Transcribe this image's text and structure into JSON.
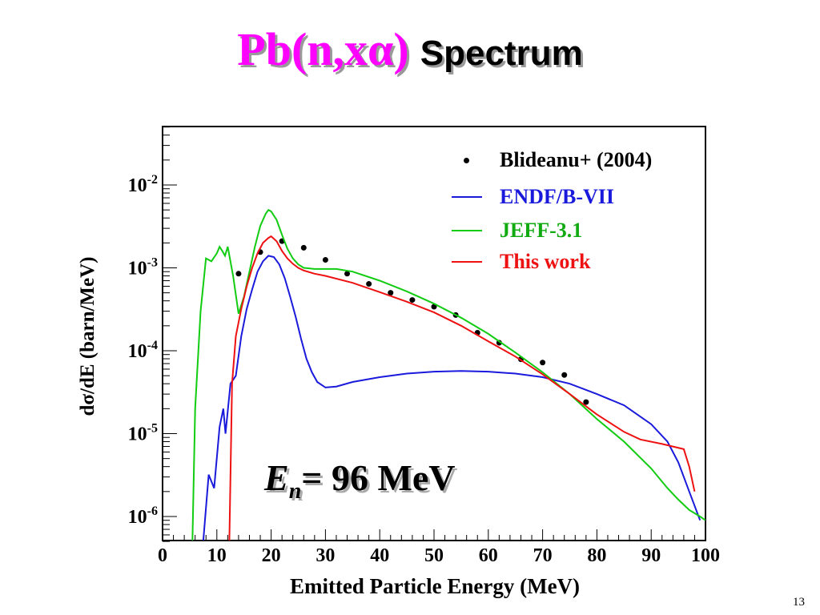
{
  "slide": {
    "title_main": "Pb(n,xα)",
    "title_sub": "Spectrum",
    "page_number": "13"
  },
  "chart_data": {
    "type": "line",
    "xlabel": "Emitted Particle Energy (MeV)",
    "ylabel": "dσ/dE (barn/MeV)",
    "xlim": [
      0,
      100
    ],
    "ylim": [
      5e-07,
      0.05
    ],
    "yscale": "log",
    "x_ticks": [
      0,
      10,
      20,
      30,
      40,
      50,
      60,
      70,
      80,
      90,
      100
    ],
    "x_tick_labels": [
      "0",
      "10",
      "20",
      "30",
      "40",
      "50",
      "60",
      "70",
      "80",
      "90",
      "100"
    ],
    "y_ticks": [
      1e-06,
      1e-05,
      0.0001,
      0.001,
      0.01
    ],
    "y_tick_labels": [
      {
        "base": "10",
        "exp": "-6"
      },
      {
        "base": "10",
        "exp": "-5"
      },
      {
        "base": "10",
        "exp": "-4"
      },
      {
        "base": "10",
        "exp": "-3"
      },
      {
        "base": "10",
        "exp": "-2"
      }
    ],
    "legend_position": "top-right",
    "annotation": {
      "symbol": "E",
      "subscript": "n",
      "text": "= 96 MeV"
    },
    "series": [
      {
        "name": "Blideanu+ (2004)",
        "style": "points",
        "color": "#000000",
        "x": [
          14,
          18,
          22,
          26,
          30,
          34,
          38,
          42,
          46,
          50,
          54,
          58,
          62,
          66,
          70,
          74,
          78
        ],
        "y": [
          0.00085,
          0.00155,
          0.0021,
          0.00175,
          0.00125,
          0.00085,
          0.00064,
          0.0005,
          0.00041,
          0.00034,
          0.00027,
          0.000165,
          0.000125,
          7.9e-05,
          7.2e-05,
          5.1e-05,
          2.4e-05
        ]
      },
      {
        "name": "ENDF/B-VII",
        "style": "line",
        "color": "#1a1adc",
        "x": [
          7.5,
          8.5,
          9.5,
          10.5,
          11.2,
          11.6,
          12.5,
          13.5,
          14.5,
          15.5,
          16.5,
          17.5,
          18.5,
          19.5,
          20.5,
          21.5,
          22.5,
          23.5,
          24.5,
          25.5,
          26.5,
          27.5,
          28.5,
          30,
          32,
          35,
          40,
          45,
          50,
          55,
          60,
          65,
          70,
          75,
          80,
          85,
          90,
          93,
          95,
          97,
          99
        ],
        "y": [
          5e-07,
          3.2e-06,
          2.2e-06,
          1.2e-05,
          2e-05,
          1e-05,
          4e-05,
          5e-05,
          0.00015,
          0.00032,
          0.00055,
          0.0009,
          0.0012,
          0.0014,
          0.00135,
          0.0011,
          0.00075,
          0.00045,
          0.00026,
          0.00014,
          8e-05,
          5.5e-05,
          4.2e-05,
          3.6e-05,
          3.7e-05,
          4.2e-05,
          4.8e-05,
          5.3e-05,
          5.6e-05,
          5.7e-05,
          5.6e-05,
          5.3e-05,
          4.8e-05,
          4e-05,
          3e-05,
          2.2e-05,
          1.3e-05,
          8e-06,
          4.5e-06,
          2e-06,
          9e-07
        ]
      },
      {
        "name": "JEFF-3.1",
        "style": "line",
        "color": "#11cc11",
        "x": [
          5.5,
          6,
          7,
          8,
          9,
          10,
          10.5,
          11,
          11.5,
          12,
          13,
          14,
          15,
          16,
          17,
          18,
          19,
          19.5,
          20,
          21,
          22,
          23,
          24,
          25,
          26,
          28,
          30,
          32,
          35,
          40,
          45,
          50,
          55,
          60,
          65,
          70,
          75,
          80,
          85,
          90,
          93,
          95,
          97,
          99,
          100
        ],
        "y": [
          5e-07,
          2e-05,
          0.0003,
          0.0013,
          0.0012,
          0.0015,
          0.0018,
          0.0016,
          0.0014,
          0.0018,
          0.0008,
          0.00028,
          0.00045,
          0.0009,
          0.0018,
          0.0032,
          0.0045,
          0.005,
          0.0048,
          0.0038,
          0.0025,
          0.0017,
          0.0013,
          0.0011,
          0.001,
          0.00097,
          0.00097,
          0.00097,
          0.0009,
          0.0007,
          0.00052,
          0.00037,
          0.00025,
          0.00016,
          9.5e-05,
          5.5e-05,
          3e-05,
          1.5e-05,
          8e-06,
          3.8e-06,
          2.2e-06,
          1.6e-06,
          1.2e-06,
          1e-06,
          9e-07
        ]
      },
      {
        "name": "This work",
        "style": "line",
        "color": "#ee1111",
        "x": [
          12.3,
          12.8,
          13.5,
          14.5,
          15.5,
          16.5,
          17.5,
          18.5,
          19.5,
          20,
          21,
          22,
          23,
          24,
          25,
          26,
          28,
          30,
          35,
          40,
          45,
          50,
          55,
          60,
          65,
          70,
          75,
          80,
          85,
          88,
          92,
          96,
          97,
          98
        ],
        "y": [
          5e-07,
          4e-05,
          0.00015,
          0.00032,
          0.0006,
          0.001,
          0.0015,
          0.002,
          0.0023,
          0.0024,
          0.0021,
          0.0016,
          0.0013,
          0.00112,
          0.001,
          0.00093,
          0.00085,
          0.0008,
          0.00066,
          0.00051,
          0.00039,
          0.00029,
          0.0002,
          0.00013,
          8.5e-05,
          5.2e-05,
          3e-05,
          1.7e-05,
          1.05e-05,
          8.5e-06,
          7.5e-06,
          6.5e-06,
          4e-06,
          2e-06
        ]
      }
    ]
  }
}
